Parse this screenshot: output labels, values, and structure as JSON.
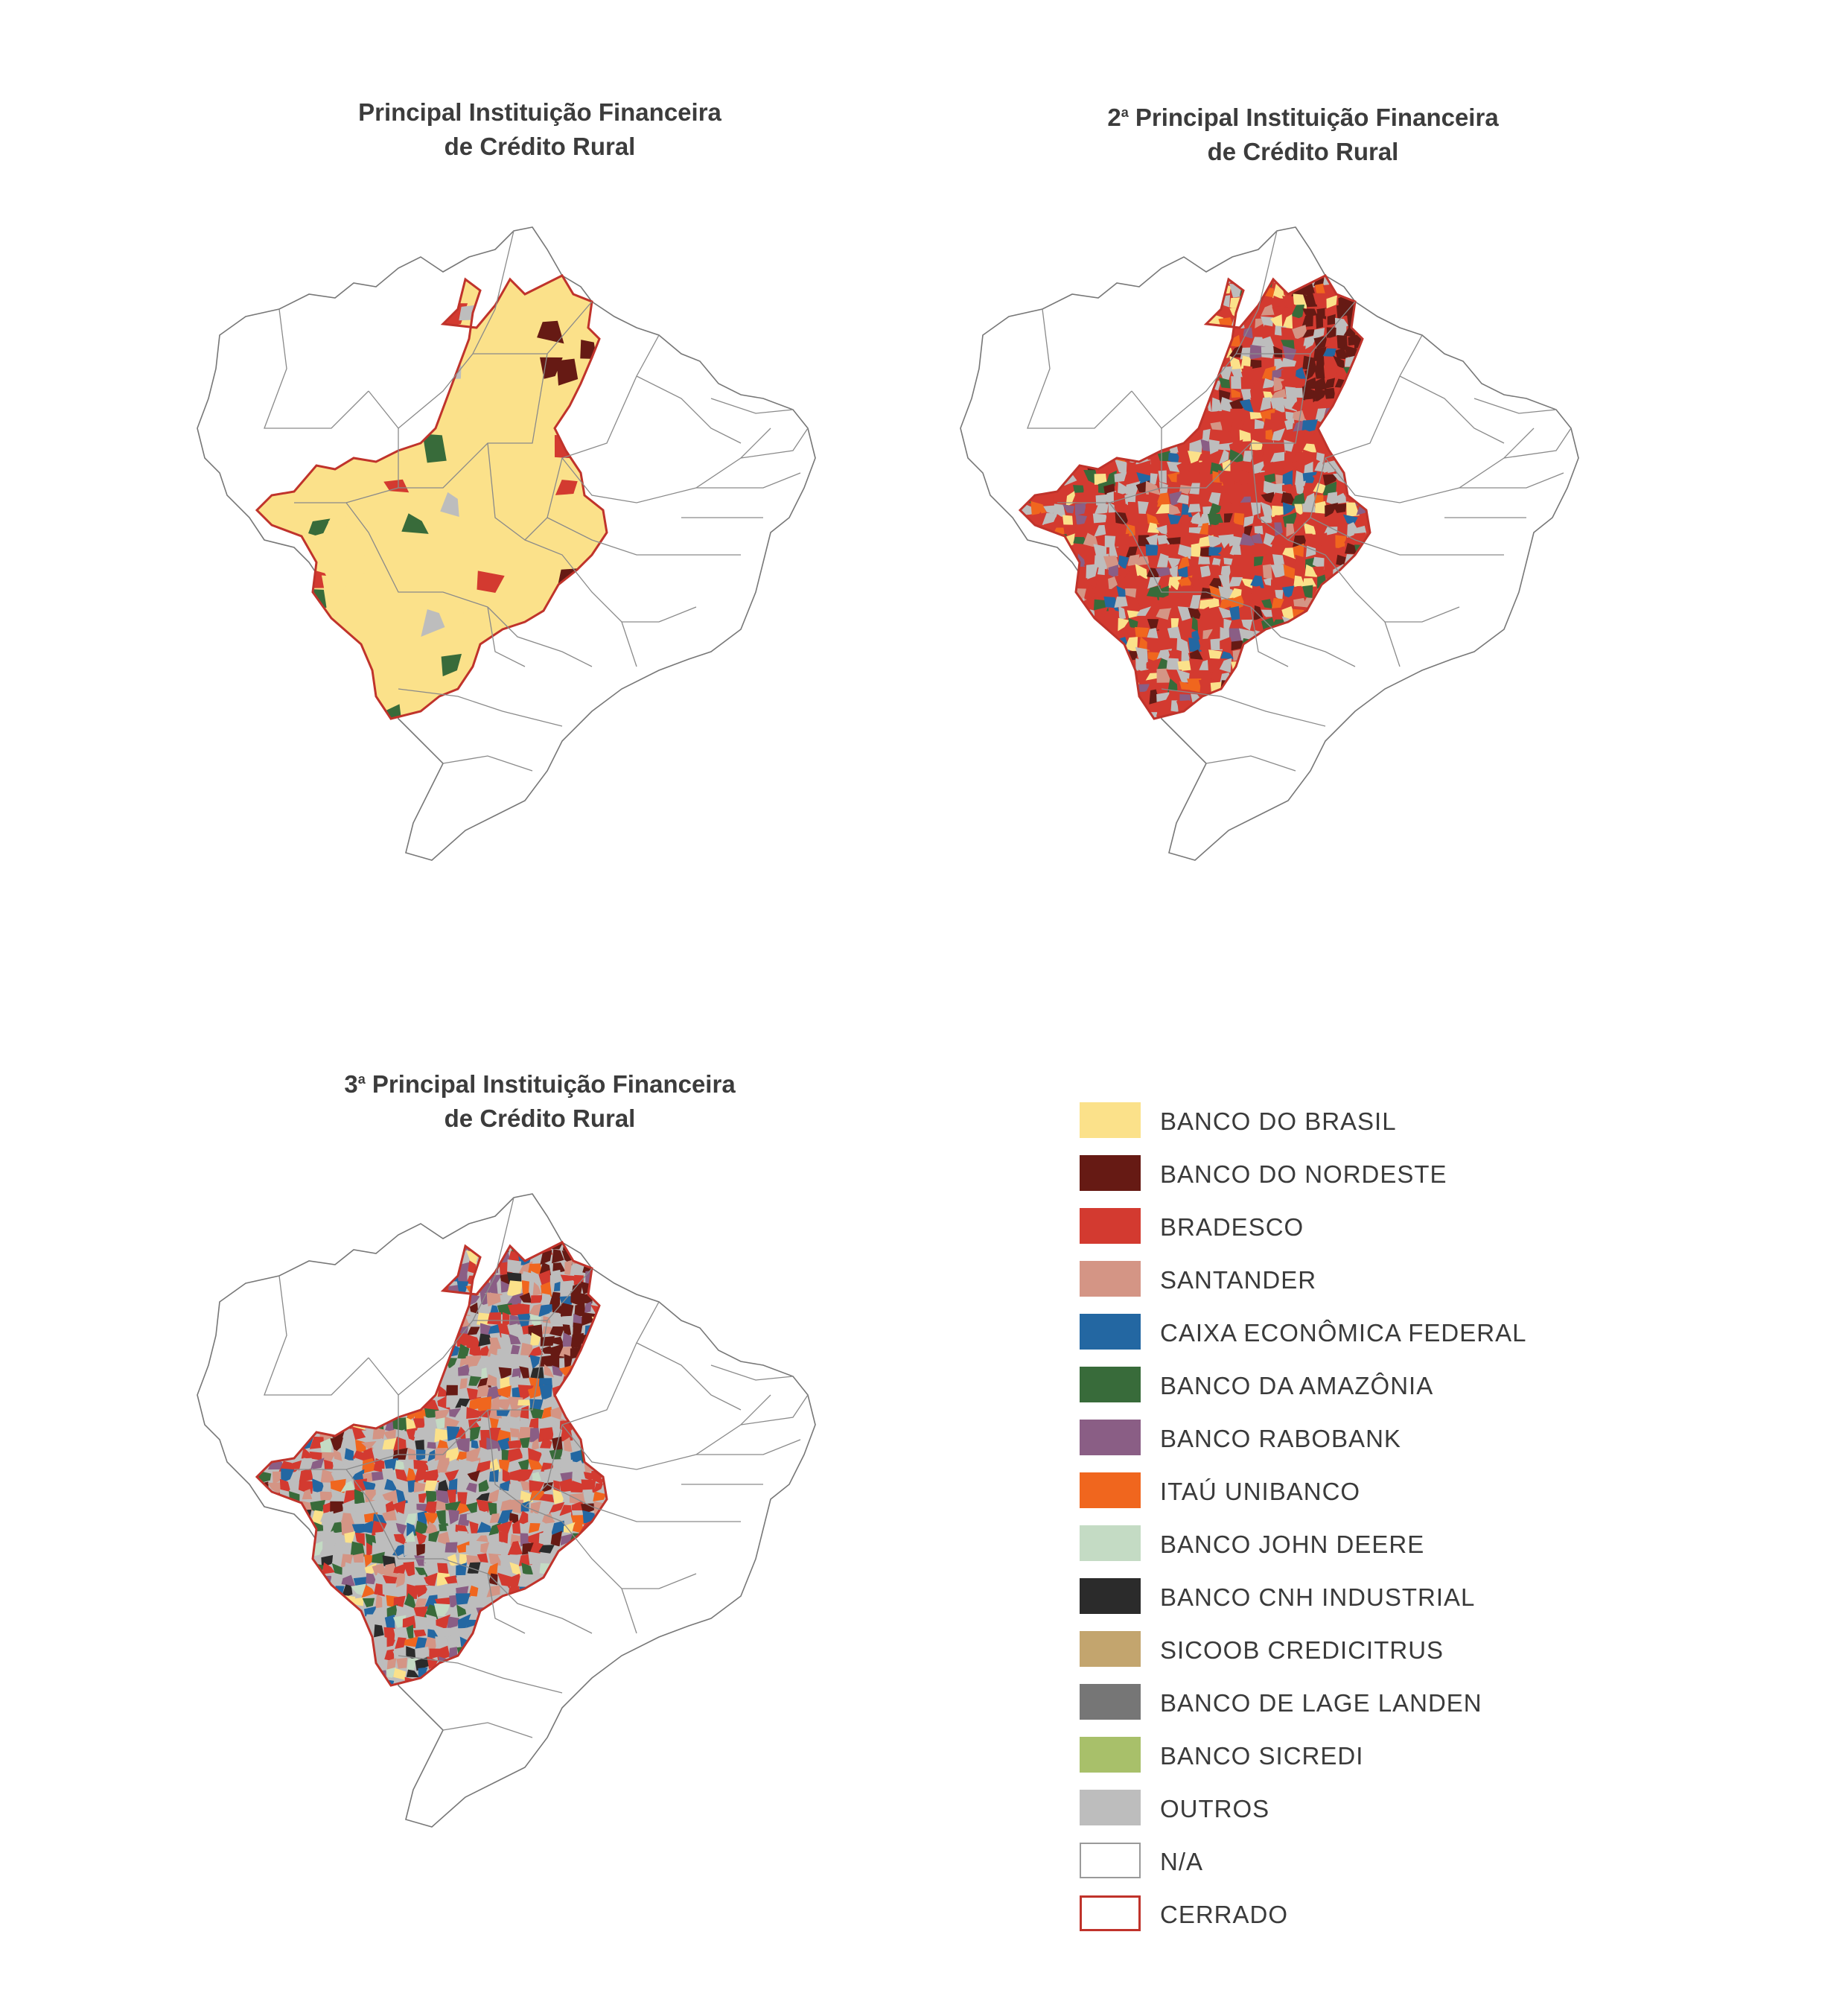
{
  "maps": [
    {
      "title": "Principal Instituição Financeira",
      "title_sup": "",
      "title_line2": "de Crédito Rural"
    },
    {
      "title_prefix": "2",
      "title_sup": "a",
      "title": " Principal Instituição Financeira",
      "title_line2": "de Crédito Rural"
    },
    {
      "title_prefix": "3",
      "title_sup": "a",
      "title": " Principal Instituição Financeira",
      "title_line2": "de Crédito Rural"
    }
  ],
  "legend": [
    {
      "label": "BANCO DO BRASIL",
      "color": "#fbe18a",
      "type": "fill"
    },
    {
      "label": "BANCO DO NORDESTE",
      "color": "#661a14",
      "type": "fill"
    },
    {
      "label": "BRADESCO",
      "color": "#d33a30",
      "type": "fill"
    },
    {
      "label": "SANTANDER",
      "color": "#d49585",
      "type": "fill"
    },
    {
      "label": "CAIXA ECONÔMICA FEDERAL",
      "color": "#2367a2",
      "type": "fill"
    },
    {
      "label": "BANCO DA AMAZÔNIA",
      "color": "#386b3a",
      "type": "fill"
    },
    {
      "label": "BANCO RABOBANK",
      "color": "#8a5e85",
      "type": "fill"
    },
    {
      "label": "ITAÚ UNIBANCO",
      "color": "#f0661e",
      "type": "fill"
    },
    {
      "label": "BANCO JOHN DEERE",
      "color": "#c4dbc4",
      "type": "fill"
    },
    {
      "label": "BANCO CNH INDUSTRIAL",
      "color": "#2b2b2b",
      "type": "fill"
    },
    {
      "label": "SICOOB CREDICITRUS",
      "color": "#c3a56e",
      "type": "fill"
    },
    {
      "label": "BANCO DE LAGE LANDEN",
      "color": "#767676",
      "type": "fill"
    },
    {
      "label": "BANCO SICREDI",
      "color": "#a8c06a",
      "type": "fill"
    },
    {
      "label": "OUTROS",
      "color": "#bdbdbd",
      "type": "fill"
    },
    {
      "label": "N/A",
      "color": "#ffffff",
      "type": "outline-gray"
    },
    {
      "label": "CERRADO",
      "color": "#c0332b",
      "type": "outline-red"
    }
  ]
}
